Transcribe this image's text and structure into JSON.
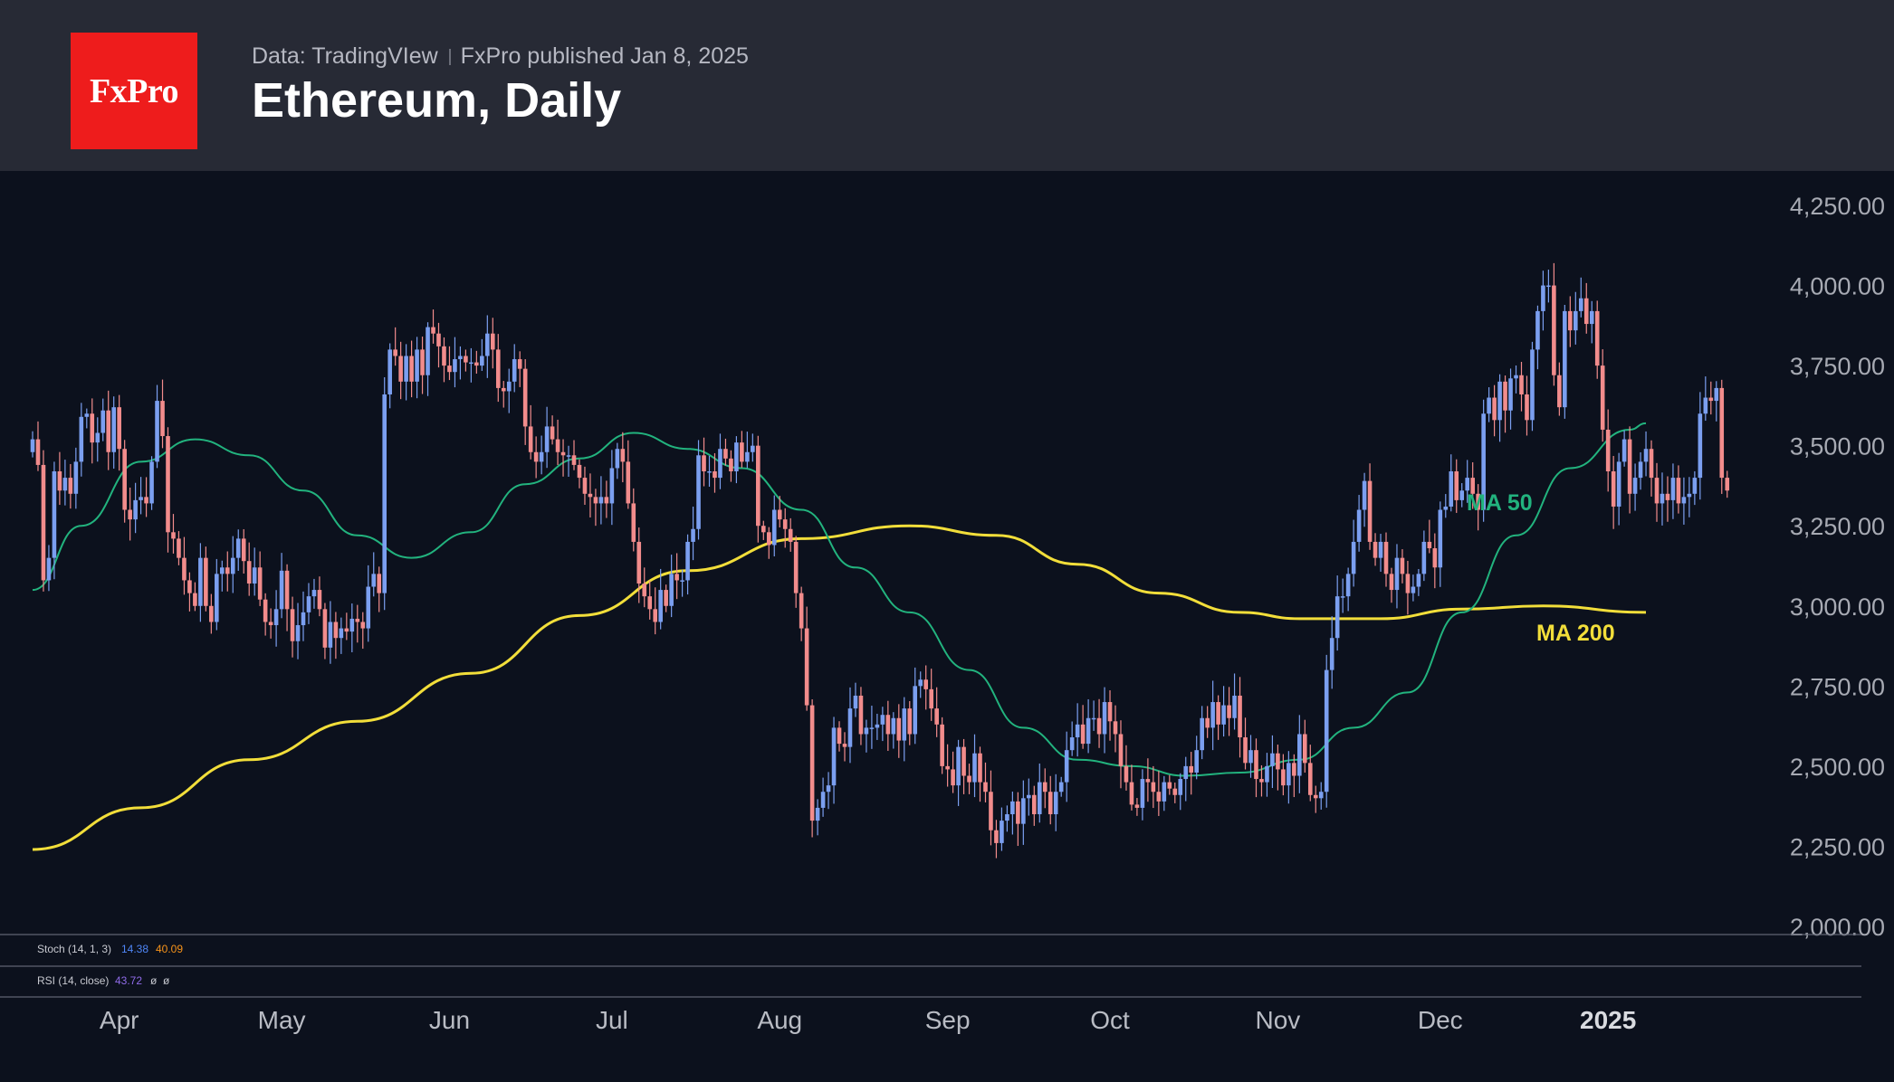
{
  "header": {
    "logo_text": "FxPro",
    "data_source": "Data: TradingVIew",
    "published": "FxPro published Jan 8, 2025",
    "title": "Ethereum, Daily"
  },
  "indicators": {
    "stoch": {
      "label": "Stoch (14, 1, 3)",
      "k": "14.38",
      "d": "40.09"
    },
    "rsi": {
      "label": "RSI (14, close)",
      "value": "43.72",
      "extra1": "ø",
      "extra2": "ø"
    }
  },
  "colors": {
    "up": "#7b9ff0",
    "down": "#f28c8c",
    "ma50": "#22b37e",
    "ma200": "#f2de3a",
    "background": "#0c111d",
    "header": "#272a35",
    "logo": "#ee1c1c"
  },
  "chart_data": {
    "type": "candlestick",
    "title": "Ethereum, Daily",
    "ylim": [
      2000,
      4250
    ],
    "y_ticks": [
      2000,
      2250,
      2500,
      2750,
      3000,
      3250,
      3500,
      3750,
      4000,
      4250
    ],
    "y_tick_labels": [
      "2,000.00",
      "2,250.00",
      "2,500.00",
      "2,750.00",
      "3,000.00",
      "3,250.00",
      "3,500.00",
      "3,750.00",
      "4,000.00",
      "4,250.00"
    ],
    "x_range": [
      "2024-03-16",
      "2025-01-18"
    ],
    "x_ticks": [
      {
        "date": "2024-04-01",
        "label": "Apr"
      },
      {
        "date": "2024-05-01",
        "label": "May"
      },
      {
        "date": "2024-06-01",
        "label": "Jun"
      },
      {
        "date": "2024-07-01",
        "label": "Jul"
      },
      {
        "date": "2024-08-01",
        "label": "Aug"
      },
      {
        "date": "2024-09-01",
        "label": "Sep"
      },
      {
        "date": "2024-10-01",
        "label": "Oct"
      },
      {
        "date": "2024-11-01",
        "label": "Nov"
      },
      {
        "date": "2024-12-01",
        "label": "Dec"
      },
      {
        "date": "2025-01-01",
        "label": "2025",
        "bold": true
      }
    ],
    "close_series": {
      "start_date": "2024-03-16",
      "values": [
        3520,
        3440,
        3080,
        3150,
        3420,
        3360,
        3400,
        3350,
        3450,
        3590,
        3600,
        3510,
        3540,
        3610,
        3480,
        3620,
        3490,
        3300,
        3270,
        3330,
        3340,
        3320,
        3450,
        3640,
        3530,
        3230,
        3210,
        3150,
        3080,
        3040,
        3000,
        3150,
        3000,
        2950,
        3100,
        3120,
        3100,
        3150,
        3210,
        3140,
        3070,
        3120,
        3020,
        2950,
        2940,
        2990,
        3110,
        2990,
        2890,
        2940,
        2980,
        3030,
        3050,
        2990,
        2870,
        2950,
        2900,
        2930,
        2920,
        2960,
        2950,
        2930,
        3060,
        3100,
        3040,
        3660,
        3800,
        3780,
        3700,
        3780,
        3700,
        3800,
        3720,
        3870,
        3850,
        3810,
        3750,
        3730,
        3770,
        3780,
        3760,
        3760,
        3750,
        3780,
        3850,
        3800,
        3680,
        3670,
        3700,
        3770,
        3740,
        3560,
        3480,
        3450,
        3480,
        3560,
        3520,
        3480,
        3470,
        3470,
        3440,
        3400,
        3350,
        3340,
        3320,
        3340,
        3320,
        3430,
        3490,
        3450,
        3320,
        3200,
        3070,
        3030,
        2990,
        2950,
        3050,
        3000,
        3100,
        3080,
        3080,
        3200,
        3240,
        3470,
        3420,
        3420,
        3400,
        3490,
        3460,
        3420,
        3510,
        3450,
        3480,
        3500,
        3250,
        3230,
        3190,
        3300,
        3270,
        3240,
        3200,
        3040,
        2930,
        2690,
        2330,
        2370,
        2420,
        2440,
        2620,
        2570,
        2560,
        2680,
        2720,
        2600,
        2620,
        2620,
        2630,
        2660,
        2600,
        2650,
        2580,
        2680,
        2600,
        2750,
        2770,
        2740,
        2680,
        2630,
        2500,
        2490,
        2440,
        2560,
        2470,
        2450,
        2540,
        2450,
        2420,
        2300,
        2260,
        2330,
        2350,
        2390,
        2320,
        2400,
        2410,
        2350,
        2450,
        2420,
        2350,
        2420,
        2450,
        2550,
        2590,
        2630,
        2570,
        2650,
        2650,
        2600,
        2700,
        2640,
        2600,
        2500,
        2450,
        2380,
        2370,
        2460,
        2450,
        2420,
        2390,
        2450,
        2430,
        2410,
        2460,
        2500,
        2480,
        2550,
        2650,
        2620,
        2700,
        2630,
        2690,
        2650,
        2720,
        2590,
        2510,
        2550,
        2460,
        2450,
        2500,
        2540,
        2490,
        2440,
        2510,
        2470,
        2600,
        2510,
        2410,
        2400,
        2420,
        2800,
        2900,
        3030,
        3030,
        3100,
        3200,
        3300,
        3390,
        3200,
        3150,
        3200,
        3100,
        3050,
        3150,
        3100,
        3040,
        3060,
        3100,
        3200,
        3180,
        3120,
        3300,
        3310,
        3420,
        3330,
        3360,
        3400,
        3350,
        3300,
        3600,
        3650,
        3580,
        3700,
        3610,
        3710,
        3720,
        3660,
        3580,
        3800,
        3920,
        4000,
        4000,
        3720,
        3620,
        3920,
        3860,
        3920,
        3960,
        3880,
        3920,
        3750,
        3550,
        3420,
        3310,
        3450,
        3520,
        3350,
        3400,
        3450,
        3490,
        3400,
        3320,
        3350,
        3330,
        3400,
        3320,
        3340,
        3350,
        3400,
        3600,
        3650,
        3640,
        3680,
        3400,
        3360
      ],
      "note": "approximate daily closes read from candlestick chart"
    },
    "series": [
      {
        "name": "MA 50",
        "label": "MA 50",
        "color": "#22b37e",
        "points": [
          [
            "2024-03-16",
            3050
          ],
          [
            "2024-03-25",
            3250
          ],
          [
            "2024-04-05",
            3450
          ],
          [
            "2024-04-15",
            3520
          ],
          [
            "2024-04-25",
            3470
          ],
          [
            "2024-05-05",
            3360
          ],
          [
            "2024-05-15",
            3220
          ],
          [
            "2024-05-25",
            3150
          ],
          [
            "2024-06-05",
            3230
          ],
          [
            "2024-06-15",
            3380
          ],
          [
            "2024-06-25",
            3460
          ],
          [
            "2024-07-05",
            3540
          ],
          [
            "2024-07-15",
            3490
          ],
          [
            "2024-07-25",
            3430
          ],
          [
            "2024-08-05",
            3300
          ],
          [
            "2024-08-15",
            3120
          ],
          [
            "2024-08-25",
            2980
          ],
          [
            "2024-09-05",
            2800
          ],
          [
            "2024-09-15",
            2620
          ],
          [
            "2024-09-25",
            2520
          ],
          [
            "2024-10-05",
            2500
          ],
          [
            "2024-10-15",
            2470
          ],
          [
            "2024-10-25",
            2480
          ],
          [
            "2024-11-05",
            2520
          ],
          [
            "2024-11-15",
            2620
          ],
          [
            "2024-11-25",
            2730
          ],
          [
            "2024-12-05",
            2980
          ],
          [
            "2024-12-15",
            3220
          ],
          [
            "2024-12-25",
            3430
          ],
          [
            "2025-01-05",
            3550
          ],
          [
            "2025-01-08",
            3570
          ]
        ]
      },
      {
        "name": "MA 200",
        "label": "MA 200",
        "color": "#f2de3a",
        "points": [
          [
            "2024-03-16",
            2240
          ],
          [
            "2024-04-05",
            2370
          ],
          [
            "2024-04-25",
            2520
          ],
          [
            "2024-05-15",
            2640
          ],
          [
            "2024-06-05",
            2790
          ],
          [
            "2024-06-25",
            2970
          ],
          [
            "2024-07-15",
            3110
          ],
          [
            "2024-08-05",
            3210
          ],
          [
            "2024-08-25",
            3250
          ],
          [
            "2024-09-10",
            3220
          ],
          [
            "2024-09-25",
            3130
          ],
          [
            "2024-10-10",
            3040
          ],
          [
            "2024-10-25",
            2980
          ],
          [
            "2024-11-05",
            2960
          ],
          [
            "2024-11-20",
            2960
          ],
          [
            "2024-12-05",
            2990
          ],
          [
            "2024-12-20",
            3000
          ],
          [
            "2025-01-08",
            2980
          ]
        ]
      }
    ]
  }
}
